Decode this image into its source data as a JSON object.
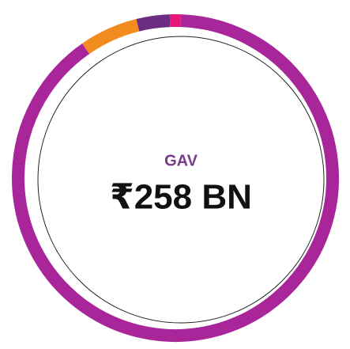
{
  "chart_data": {
    "type": "donut",
    "values": [
      1.1,
      89.8,
      5.8,
      3.3
    ],
    "colors": [
      "#e8157a",
      "#a8259a",
      "#f28c1e",
      "#6b2d80"
    ],
    "center_label": "GAV",
    "center_value": "₹258 BN"
  }
}
